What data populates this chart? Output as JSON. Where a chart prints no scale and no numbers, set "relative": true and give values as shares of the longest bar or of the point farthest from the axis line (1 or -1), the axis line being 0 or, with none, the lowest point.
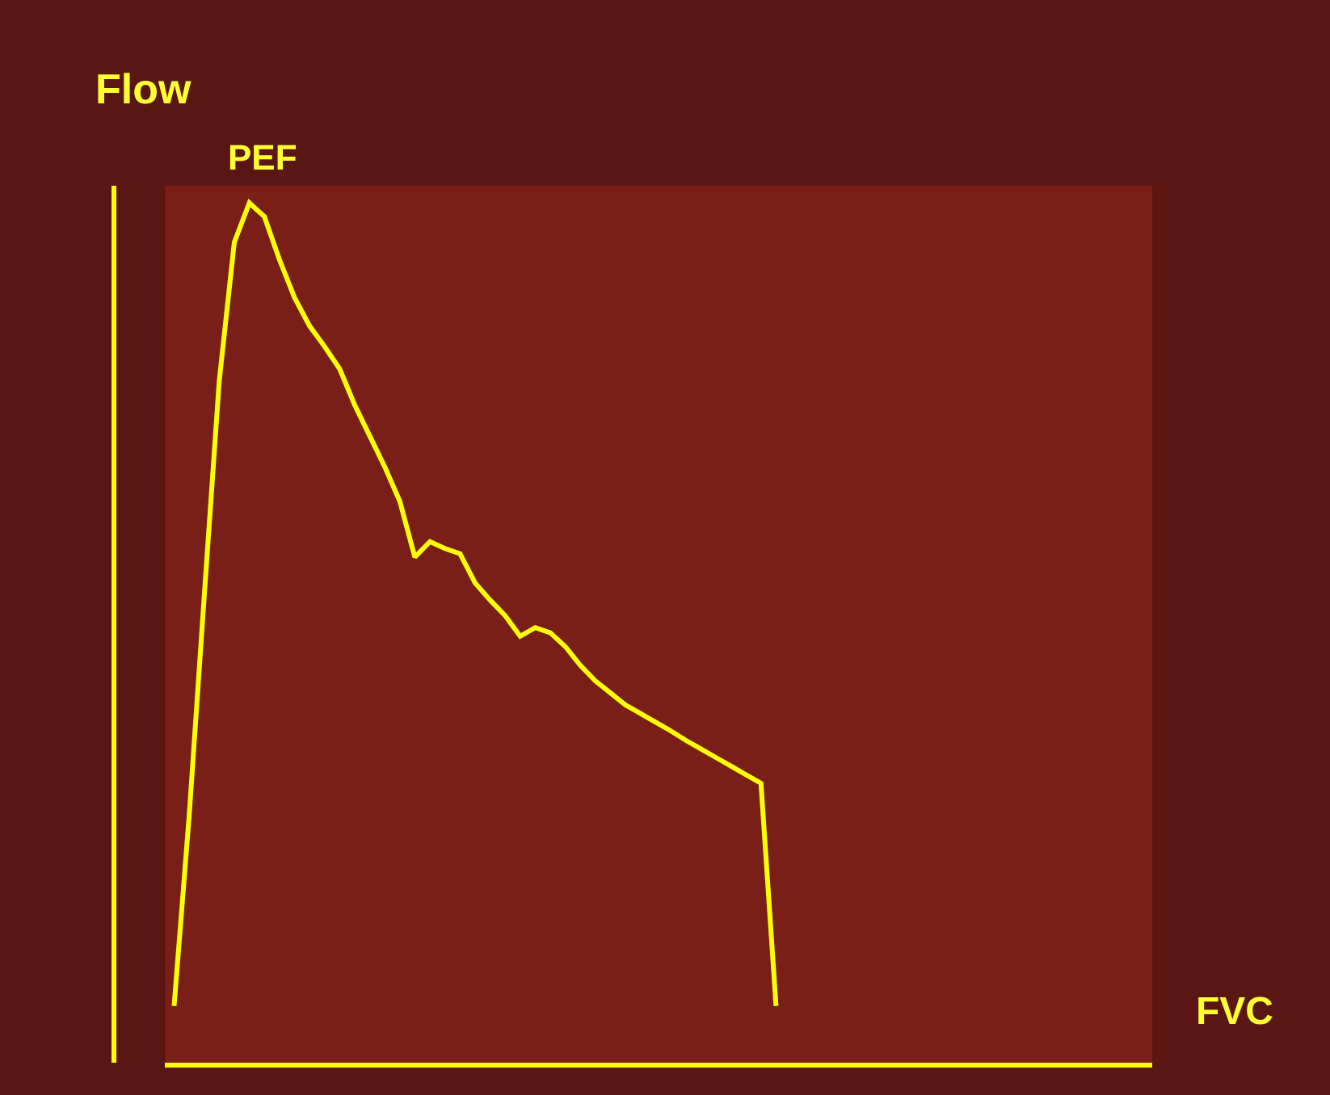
{
  "chart_data": {
    "type": "line",
    "relative": true,
    "xlabel": "FVC",
    "ylabel": "Flow",
    "annotations": [
      {
        "text": "PEF",
        "y": 1
      }
    ],
    "categories": [
      null,
      null,
      null,
      null,
      null,
      null,
      null,
      null,
      null,
      null,
      null,
      null,
      null,
      null,
      null,
      null,
      null,
      null,
      null,
      null,
      null,
      null,
      null,
      null,
      null,
      null,
      null,
      null,
      null,
      null,
      null,
      null,
      null,
      null,
      null,
      null,
      null,
      null,
      null,
      null,
      null,
      null,
      null,
      null,
      null,
      null,
      null,
      null,
      null,
      null,
      null,
      null,
      null,
      null,
      null,
      null,
      null,
      null,
      null,
      null,
      null,
      null,
      null,
      null,
      null,
      null
    ],
    "series": [
      {
        "color": "#ffff00",
        "values": [
          0.066,
          0.287,
          0.542,
          0.793,
          0.954,
          1,
          0.984,
          0.934,
          0.89,
          0.857,
          0.833,
          0.807,
          0.765,
          0.729,
          0.693,
          0.653,
          0.588,
          0.606,
          0.598,
          0.592,
          0.558,
          0.538,
          0.52,
          0.496,
          0.506,
          0.5,
          0.484,
          0.462,
          0.444,
          0.43,
          0.416,
          0.406,
          0.396,
          0.386,
          0.375,
          0.365,
          0.355,
          0.345,
          0.335,
          0.325,
          0.066,
          null,
          null,
          null,
          null,
          null,
          null,
          null,
          null,
          null,
          null,
          null,
          null,
          null,
          null,
          null,
          null,
          null,
          null,
          null,
          null,
          null,
          null,
          null,
          null,
          null
        ]
      }
    ],
    "marker": "none",
    "line_style": "solid"
  }
}
